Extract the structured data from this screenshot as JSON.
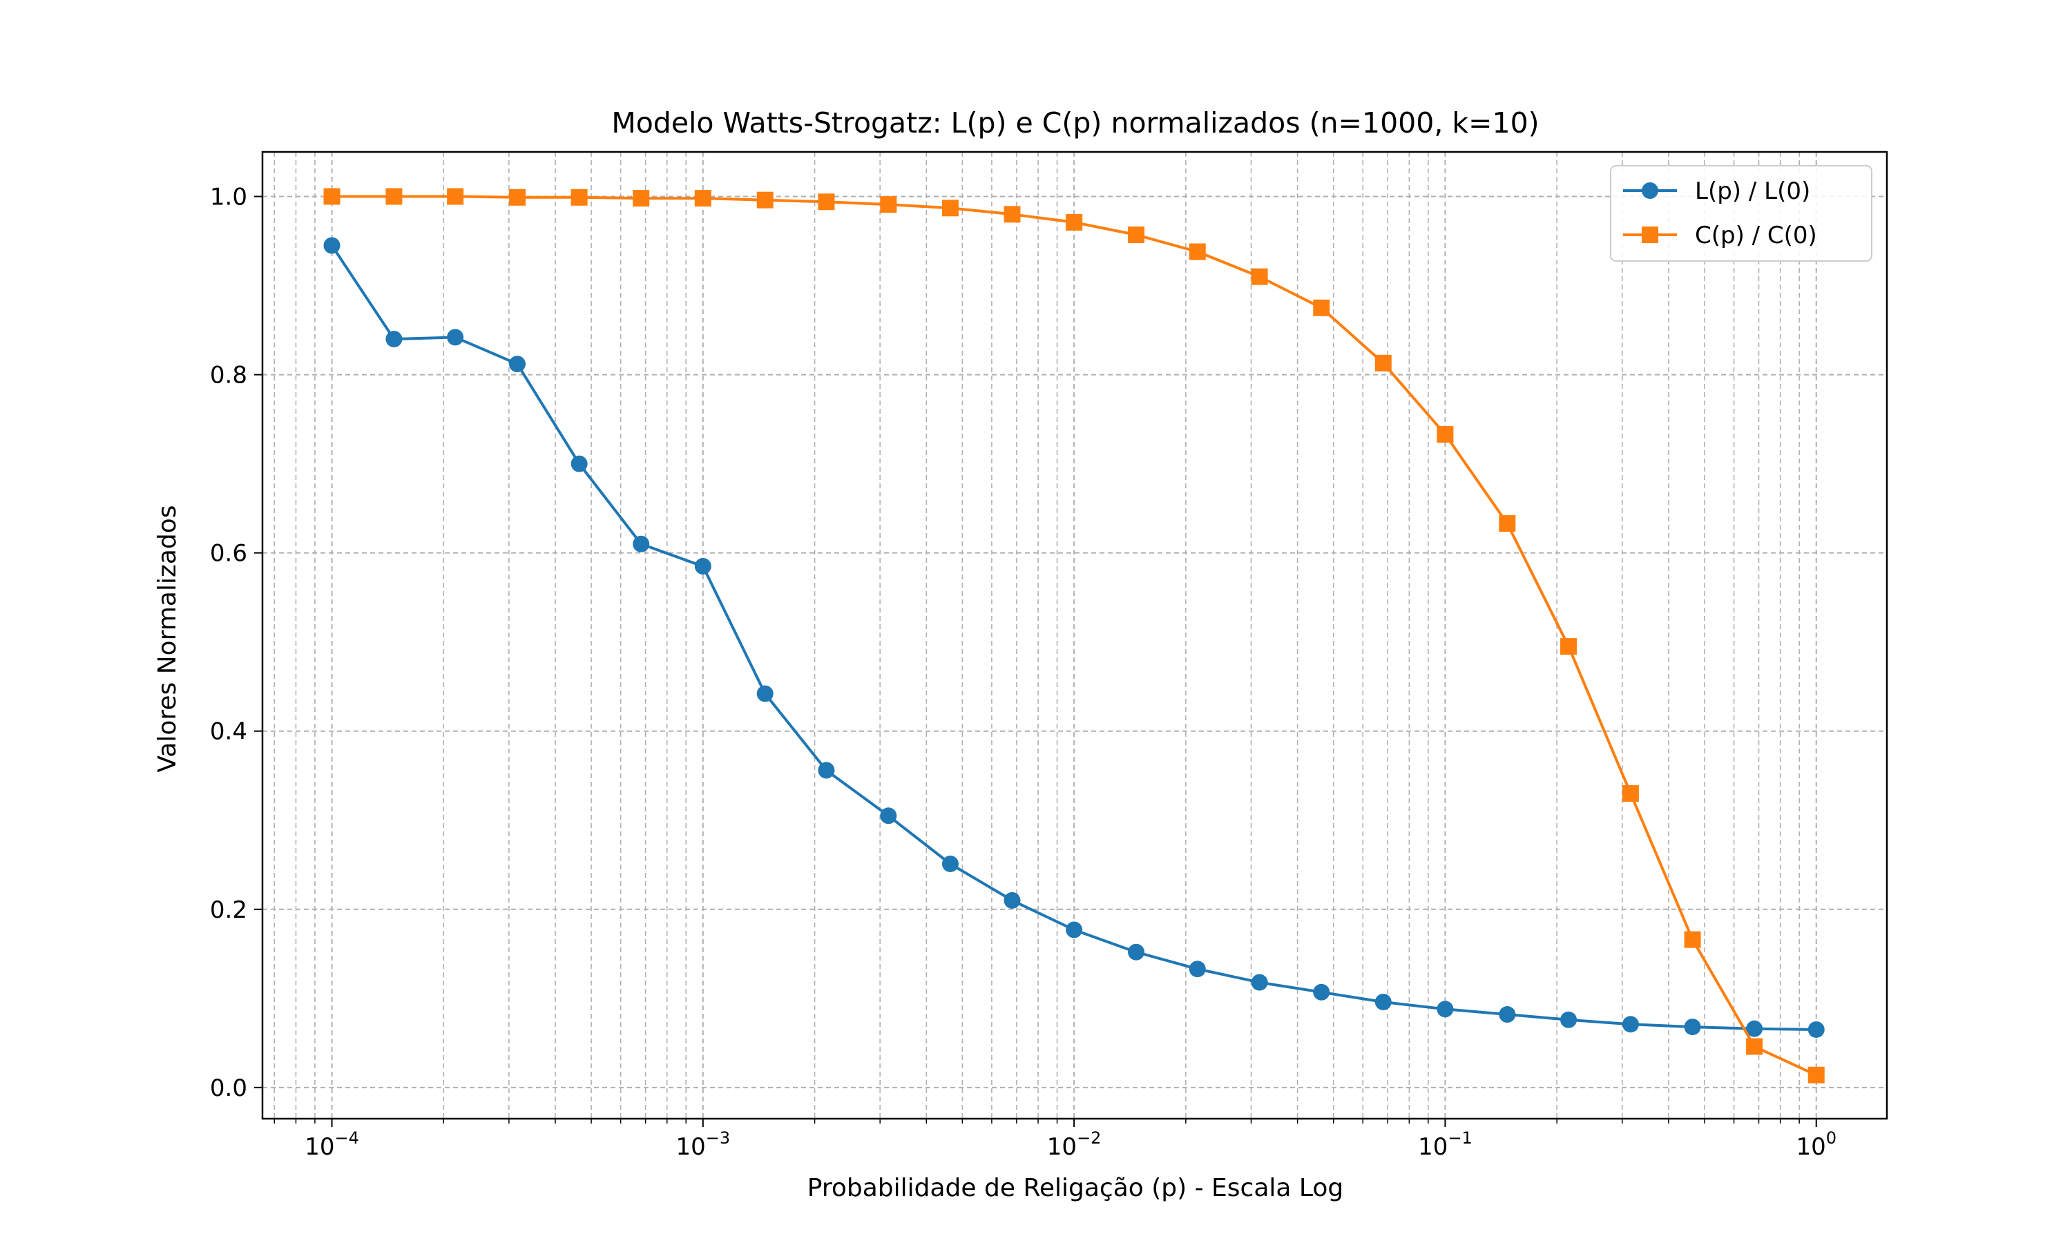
{
  "chart_data": {
    "type": "line",
    "title": "Modelo Watts-Strogatz: L(p) e C(p) normalizados (n=1000, k=10)",
    "xlabel": "Probabilidade de Religação (p) - Escala Log",
    "ylabel": "Valores Normalizados",
    "xscale": "log",
    "xlim": [
      6.5e-05,
      1.55
    ],
    "ylim": [
      -0.035,
      1.05
    ],
    "grid": true,
    "legend_position": "top-right",
    "x": [
      0.0001,
      0.000147,
      0.000215,
      0.000316,
      0.000464,
      0.000681,
      0.001,
      0.00147,
      0.00215,
      0.00316,
      0.00464,
      0.00681,
      0.01,
      0.0147,
      0.0215,
      0.0316,
      0.0464,
      0.0681,
      0.1,
      0.147,
      0.215,
      0.316,
      0.464,
      0.681,
      1.0
    ],
    "x_tick_labels": [
      {
        "value": 0.0001,
        "base": "10",
        "exp": "−4"
      },
      {
        "value": 0.001,
        "base": "10",
        "exp": "−3"
      },
      {
        "value": 0.01,
        "base": "10",
        "exp": "−2"
      },
      {
        "value": 0.1,
        "base": "10",
        "exp": "−1"
      },
      {
        "value": 1,
        "base": "10",
        "exp": "0"
      }
    ],
    "y_ticks": [
      0.0,
      0.2,
      0.4,
      0.6,
      0.8,
      1.0
    ],
    "y_tick_labels": [
      "0.0",
      "0.2",
      "0.4",
      "0.6",
      "0.8",
      "1.0"
    ],
    "series": [
      {
        "name": "L(p) / L(0)",
        "color": "#1f77b4",
        "marker": "circle",
        "values": [
          0.945,
          0.84,
          0.842,
          0.812,
          0.7,
          0.61,
          0.585,
          0.442,
          0.356,
          0.305,
          0.251,
          0.21,
          0.177,
          0.152,
          0.133,
          0.118,
          0.107,
          0.096,
          0.088,
          0.082,
          0.076,
          0.071,
          0.068,
          0.066,
          0.065
        ]
      },
      {
        "name": "C(p) / C(0)",
        "color": "#ff7f0e",
        "marker": "square",
        "values": [
          1.0,
          1.0,
          1.0,
          0.999,
          0.999,
          0.998,
          0.998,
          0.996,
          0.994,
          0.991,
          0.987,
          0.98,
          0.971,
          0.957,
          0.938,
          0.91,
          0.875,
          0.813,
          0.733,
          0.633,
          0.495,
          0.33,
          0.166,
          0.046,
          0.014
        ]
      }
    ]
  }
}
